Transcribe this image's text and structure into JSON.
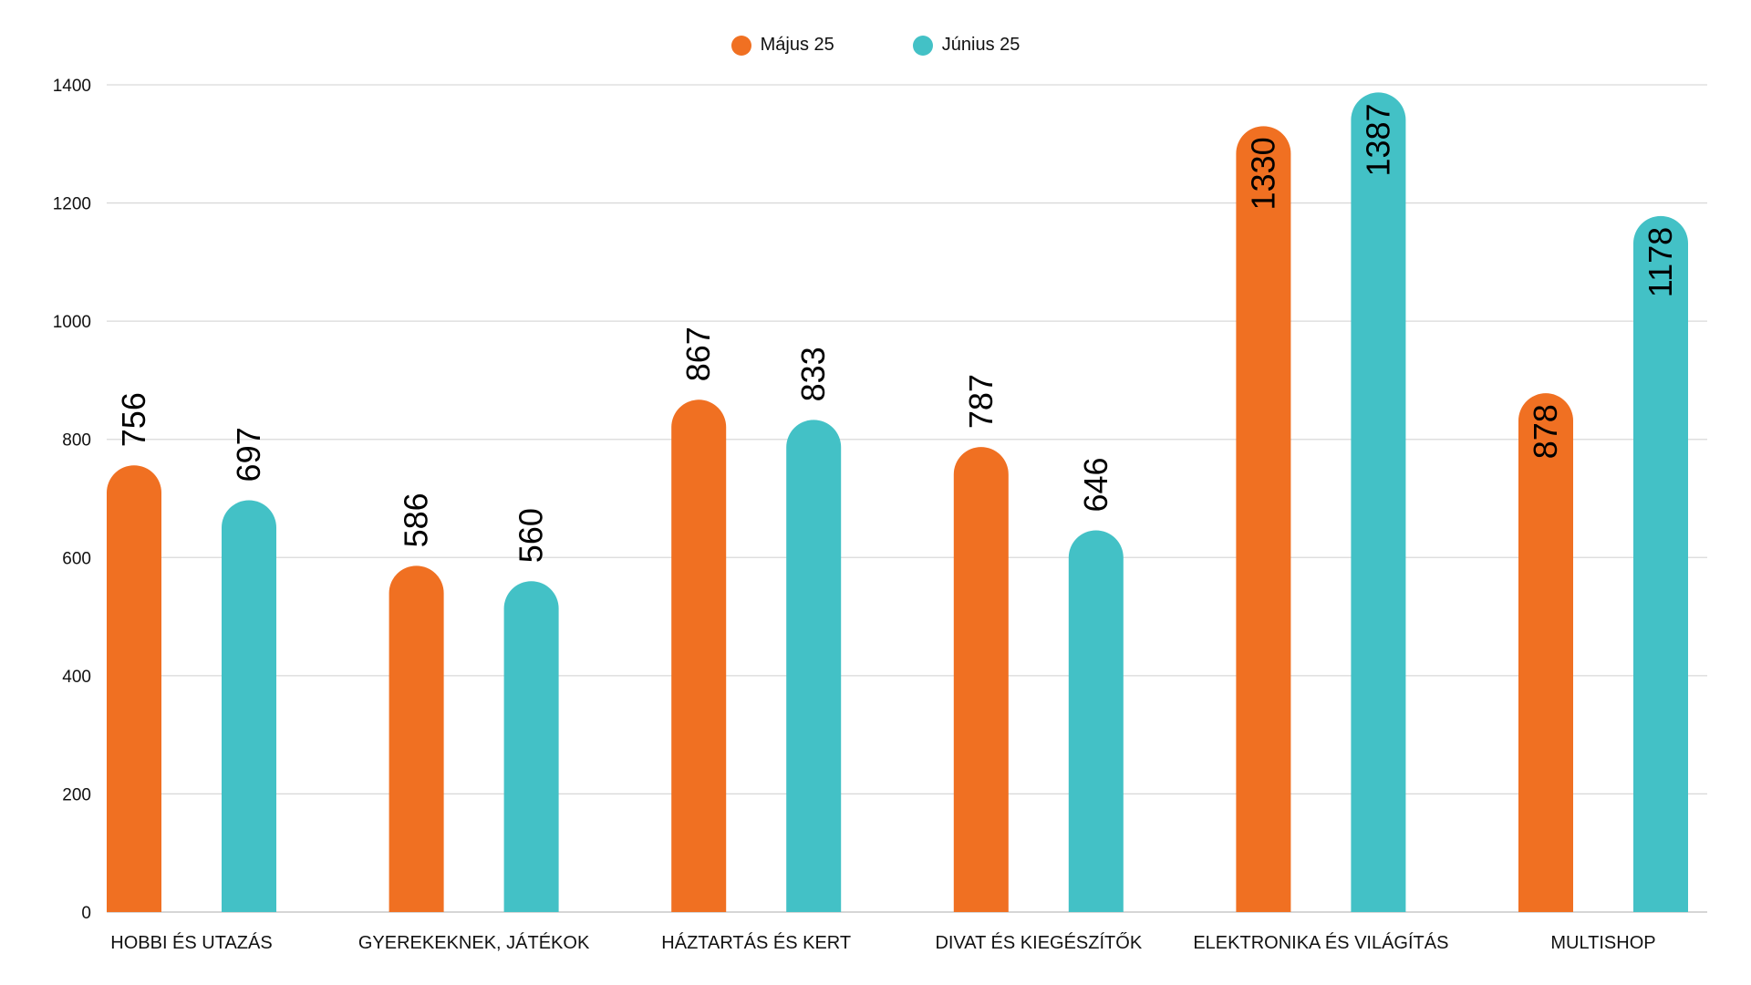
{
  "chart_data": {
    "type": "bar",
    "title": "",
    "xlabel": "",
    "ylabel": "",
    "ylim": [
      0,
      1400
    ],
    "yticks": [
      0,
      200,
      400,
      600,
      800,
      1000,
      1200,
      1400
    ],
    "grid": true,
    "legend_position": "top-center",
    "categories": [
      "HOBBI ÉS UTAZÁS",
      "GYEREKEKNEK, JÁTÉKOK",
      "HÁZTARTÁS ÉS KERT",
      "DIVAT ÉS KIEGÉSZÍTŐK",
      "ELEKTRONIKA ÉS VILÁGÍTÁS",
      "MULTISHOP"
    ],
    "series": [
      {
        "name": "Május 25",
        "color": "#F07022",
        "values": [
          756,
          586,
          867,
          787,
          1330,
          878
        ]
      },
      {
        "name": "Június 25",
        "color": "#43C1C6",
        "values": [
          697,
          560,
          833,
          646,
          1387,
          1178
        ]
      }
    ],
    "data_labels_inside": [
      [
        false,
        false,
        false,
        false,
        true,
        true
      ],
      [
        false,
        false,
        false,
        false,
        true,
        true
      ]
    ]
  }
}
